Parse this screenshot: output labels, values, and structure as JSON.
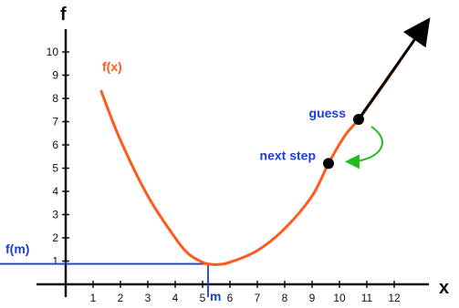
{
  "chart_data": {
    "type": "line",
    "xlabel": "x",
    "ylabel": "f",
    "xlim": [
      0,
      13
    ],
    "ylim": [
      0,
      11
    ],
    "x_ticks": [
      1,
      2,
      3,
      4,
      5,
      6,
      7,
      8,
      9,
      10,
      11,
      12
    ],
    "y_ticks": [
      1,
      2,
      3,
      4,
      5,
      6,
      7,
      8,
      9,
      10
    ],
    "grid": false,
    "series": [
      {
        "name": "f(x)",
        "color": "#ff5a1f",
        "points": [
          [
            1.3,
            8.3
          ],
          [
            2.0,
            6.2
          ],
          [
            3.0,
            3.8
          ],
          [
            4.0,
            2.0
          ],
          [
            4.5,
            1.3
          ],
          [
            5.0,
            0.95
          ],
          [
            5.2,
            0.88
          ],
          [
            5.5,
            0.85
          ],
          [
            6.0,
            0.95
          ],
          [
            7.0,
            1.45
          ],
          [
            8.0,
            2.4
          ],
          [
            9.0,
            3.8
          ],
          [
            9.6,
            5.2
          ],
          [
            10.2,
            6.4
          ],
          [
            10.7,
            7.1
          ],
          [
            11.5,
            8.4
          ],
          [
            12.2,
            9.6
          ]
        ]
      }
    ],
    "annotations": {
      "guess": {
        "label": "guess",
        "x": 10.7,
        "y": 7.1,
        "color": "#1a3fe0"
      },
      "next_step": {
        "label": "next step",
        "x": 9.6,
        "y": 5.2,
        "color": "#1a3fe0"
      },
      "minimum": {
        "x_label": "m",
        "y_label": "f(m)",
        "x": 5.2,
        "y": 0.88,
        "color": "#1a3fe0"
      },
      "tangent": {
        "from": [
          10.7,
          7.1
        ],
        "to": [
          13.2,
          11.4
        ],
        "color": "#000000"
      },
      "step_arrow_color": "#22bb22"
    }
  }
}
